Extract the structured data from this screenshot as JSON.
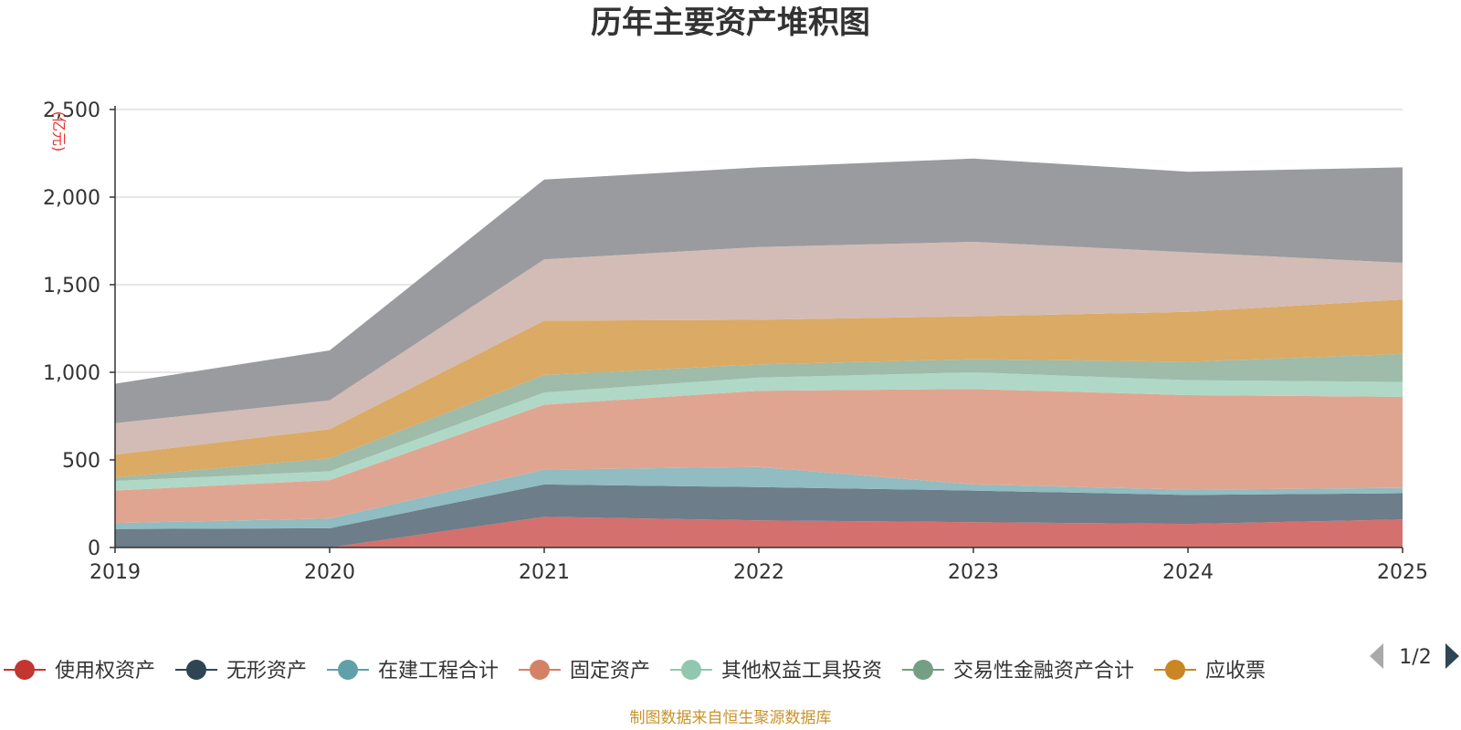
{
  "chart_data": {
    "type": "area",
    "stacked": true,
    "title": "历年主要资产堆积图",
    "unit_label": "(亿元)",
    "categories": [
      "2019",
      "2020",
      "2021",
      "2022",
      "2023",
      "2024",
      "2025"
    ],
    "ylim": [
      0,
      2500
    ],
    "yticks": [
      0,
      500,
      1000,
      1500,
      2000,
      2500
    ],
    "ytick_labels": [
      "0",
      "500",
      "1,000",
      "1,500",
      "2,000",
      "2,500"
    ],
    "grid": true,
    "series": [
      {
        "name": "使用权资产",
        "color": "#c23531",
        "fill": "#d4706e",
        "values": [
          0,
          0,
          175,
          155,
          145,
          135,
          160
        ]
      },
      {
        "name": "无形资产",
        "color": "#2f4554",
        "fill": "#6d7d89",
        "values": [
          105,
          110,
          185,
          190,
          180,
          165,
          150
        ]
      },
      {
        "name": "在建工程合计",
        "color": "#61a0a8",
        "fill": "#90bcc2",
        "values": [
          35,
          55,
          85,
          115,
          35,
          30,
          30
        ]
      },
      {
        "name": "固定资产",
        "color": "#d48265",
        "fill": "#e0a591",
        "values": [
          185,
          220,
          370,
          435,
          545,
          540,
          520
        ]
      },
      {
        "name": "其他权益工具投资",
        "color": "#91c7ae",
        "fill": "#b0d8c7",
        "values": [
          55,
          50,
          70,
          75,
          95,
          85,
          85
        ]
      },
      {
        "name": "交易性金融资产合计",
        "color": "#749f83",
        "fill": "#9fbba9",
        "values": [
          20,
          75,
          100,
          75,
          75,
          105,
          160
        ]
      },
      {
        "name": "应收票",
        "color": "#ca8622",
        "fill": "#dbaa64",
        "values": [
          130,
          165,
          310,
          255,
          245,
          285,
          310
        ]
      },
      {
        "name": "",
        "color": "#bda29a",
        "fill": "#d3bcb6",
        "values": [
          180,
          165,
          350,
          415,
          425,
          340,
          210
        ]
      },
      {
        "name": "",
        "color": "#6e7074",
        "fill": "#9a9b9e",
        "values": [
          225,
          285,
          455,
          455,
          475,
          460,
          545
        ]
      }
    ],
    "legend": {
      "position": "bottom",
      "page": "1/2"
    },
    "source": "制图数据来自恒生聚源数据库"
  }
}
